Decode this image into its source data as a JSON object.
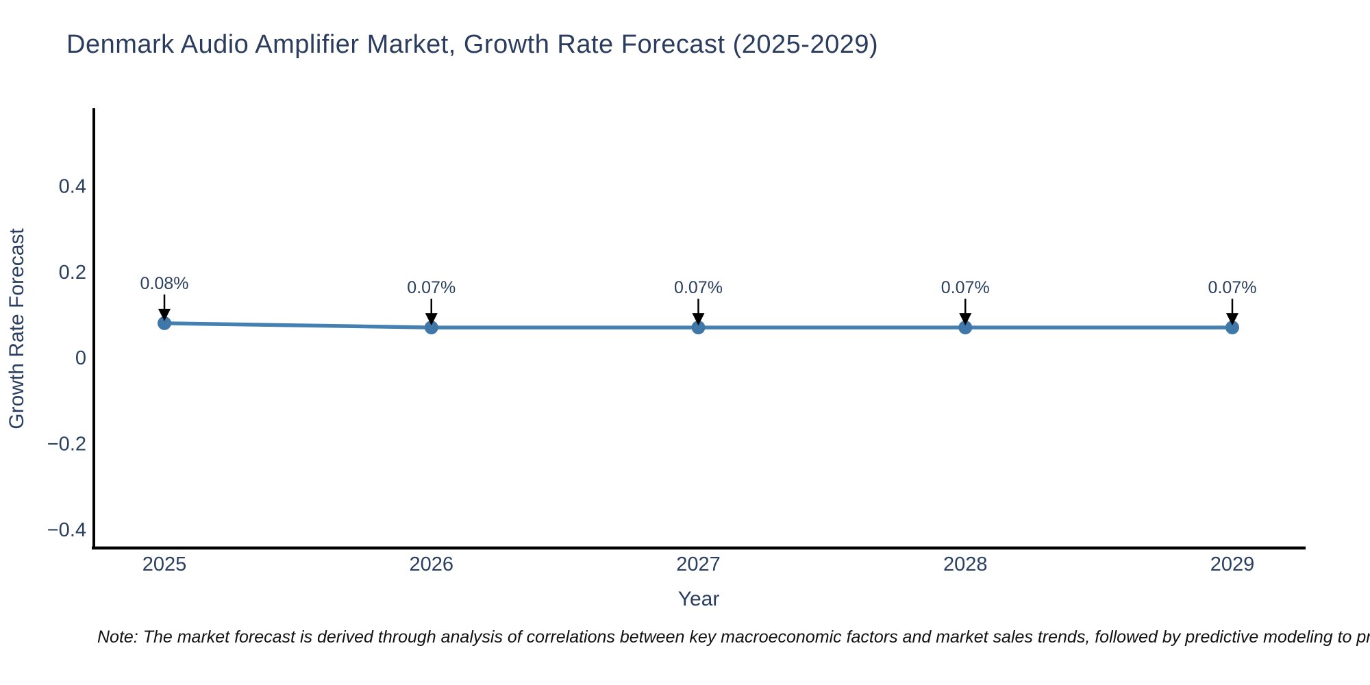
{
  "page": {
    "background_color": "#ffffff"
  },
  "chart_data": {
    "type": "line",
    "title": "Denmark Audio Amplifier Market, Growth Rate Forecast (2025-2029)",
    "xlabel": "Year",
    "ylabel": "Growth Rate Forecast",
    "categories": [
      "2025",
      "2026",
      "2027",
      "2028",
      "2029"
    ],
    "values": [
      0.08,
      0.07,
      0.07,
      0.07,
      0.07
    ],
    "point_labels": [
      "0.08%",
      "0.07%",
      "0.07%",
      "0.07%",
      "0.07%"
    ],
    "yticks": [
      0.4,
      0.2,
      0,
      -0.2,
      -0.4
    ],
    "ytick_labels": [
      "0.4",
      "0.2",
      "0",
      "−0.2",
      "−0.4"
    ],
    "ylim": [
      -0.44,
      0.58
    ],
    "grid": false,
    "legend_position": "none",
    "line_color": "#4580b2",
    "marker_color": "#3f77a9",
    "arrow_color": "#000000",
    "axis_color": "#000000",
    "text_color": "#2a3f5f"
  },
  "footnote": {
    "text": "Note: The market forecast is derived through analysis of correlations between key macroeconomic factors and market sales trends, followed by predictive modeling to project future sales."
  }
}
